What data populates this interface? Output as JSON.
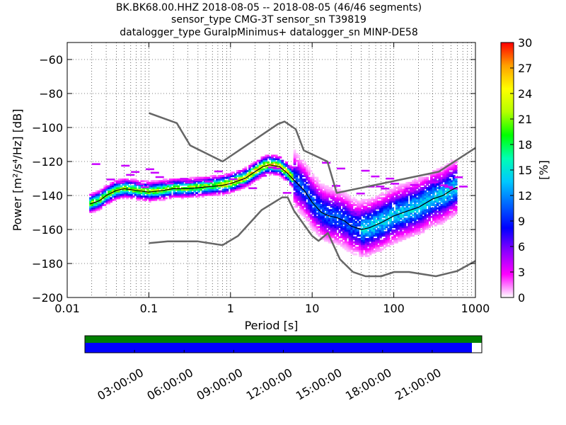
{
  "title": {
    "line1": "BK.BK68.00.HHZ   2018-08-05 -- 2018-08-05  (46/46 segments)",
    "line2": "sensor_type CMG-3T sensor_sn T39819",
    "line3": "datalogger_type GuralpMinimus+ datalogger_sn MINP-DE58"
  },
  "chart_data": [
    {
      "type": "heatmap",
      "name": "probabilistic-psd",
      "xlabel": "Period [s]",
      "ylabel": "Power [m²/s⁴/Hz] [dB]",
      "xscale": "log",
      "xlim": [
        0.01,
        1000
      ],
      "ylim": [
        -200,
        -50
      ],
      "x_ticks": [
        0.01,
        0.1,
        1,
        10,
        100,
        1000
      ],
      "x_tick_labels": [
        "0.01",
        "0.1",
        "1",
        "10",
        "100",
        "1000"
      ],
      "y_ticks": [
        -200,
        -180,
        -160,
        -140,
        -120,
        -100,
        -80,
        -60
      ],
      "y_tick_labels": [
        "−200",
        "−180",
        "−160",
        "−140",
        "−120",
        "−100",
        "−80",
        "−60"
      ],
      "grid": true,
      "colorbar": {
        "label": "[%]",
        "range": [
          0,
          30
        ],
        "ticks": [
          0,
          3,
          6,
          9,
          12,
          15,
          18,
          21,
          24,
          27,
          30
        ],
        "colormap": [
          "#ffffff",
          "#ff00ff",
          "#8b00ff",
          "#0000ff",
          "#0064ff",
          "#00c8ff",
          "#00ffb4",
          "#00ff00",
          "#b4ff00",
          "#ffff00",
          "#ffa000",
          "#ff0000"
        ]
      },
      "mode_curve": {
        "period": [
          0.019,
          0.025,
          0.03,
          0.04,
          0.05,
          0.07,
          0.1,
          0.15,
          0.2,
          0.3,
          0.5,
          0.8,
          1,
          1.5,
          2,
          2.5,
          3,
          4,
          5,
          6,
          8,
          10,
          13,
          16,
          20,
          25,
          30,
          40,
          50,
          70,
          100,
          150,
          200,
          300,
          400,
          500,
          600
        ],
        "power": [
          -145,
          -143,
          -140,
          -137,
          -136,
          -137,
          -138,
          -137,
          -136,
          -136,
          -135,
          -134,
          -133,
          -130,
          -126,
          -123,
          -122,
          -123,
          -127,
          -131,
          -137,
          -144,
          -150,
          -152,
          -153,
          -155,
          -158,
          -160,
          -159,
          -156,
          -152,
          -149,
          -147,
          -142,
          -140,
          -137,
          -135
        ]
      },
      "density_clusters": [
        {
          "period": [
            0.02,
            0.8
          ],
          "power": [
            -146,
            -130
          ],
          "level_pct": 12
        },
        {
          "period": [
            0.8,
            6
          ],
          "power": [
            -135,
            -119
          ],
          "level_pct": 14
        },
        {
          "period": [
            6,
            40
          ],
          "power": [
            -170,
            -125
          ],
          "level_pct": 6
        },
        {
          "period": [
            40,
            650
          ],
          "power": [
            -173,
            -128
          ],
          "level_pct": 8
        },
        {
          "period": [
            0.02,
            700
          ],
          "power": [
            -140,
            -120
          ],
          "level_pct": 2
        }
      ],
      "nlnm": {
        "period": [
          0.1,
          0.17,
          0.4,
          0.8,
          1.24,
          2.4,
          4.3,
          5,
          6,
          10,
          12,
          15.6,
          21.9,
          31.6,
          45,
          70,
          101,
          154,
          328,
          600,
          1000
        ],
        "power": [
          -168,
          -167,
          -167,
          -169.2,
          -163.7,
          -148.6,
          -141.1,
          -141.1,
          -149,
          -163.8,
          -166.7,
          -162.1,
          -177.5,
          -185,
          -187.5,
          -187.5,
          -185,
          -185,
          -187.5,
          -184.4,
          -178.5
        ]
      },
      "nhnm": {
        "period": [
          0.1,
          0.22,
          0.32,
          0.8,
          3.8,
          4.6,
          6.3,
          7.9,
          15.4,
          20,
          354.8,
          1000
        ],
        "power": [
          -91.5,
          -97.4,
          -110.5,
          -120,
          -98,
          -96.5,
          -101,
          -113.5,
          -120,
          -138.5,
          -126,
          -112
        ]
      }
    },
    {
      "type": "timeline",
      "name": "data-availability",
      "x_tick_labels": [
        "03:00:00",
        "06:00:00",
        "09:00:00",
        "12:00:00",
        "15:00:00",
        "18:00:00",
        "21:00:00"
      ],
      "coverage_fraction_green": 1.0,
      "coverage_fraction_blue": 0.975
    }
  ]
}
